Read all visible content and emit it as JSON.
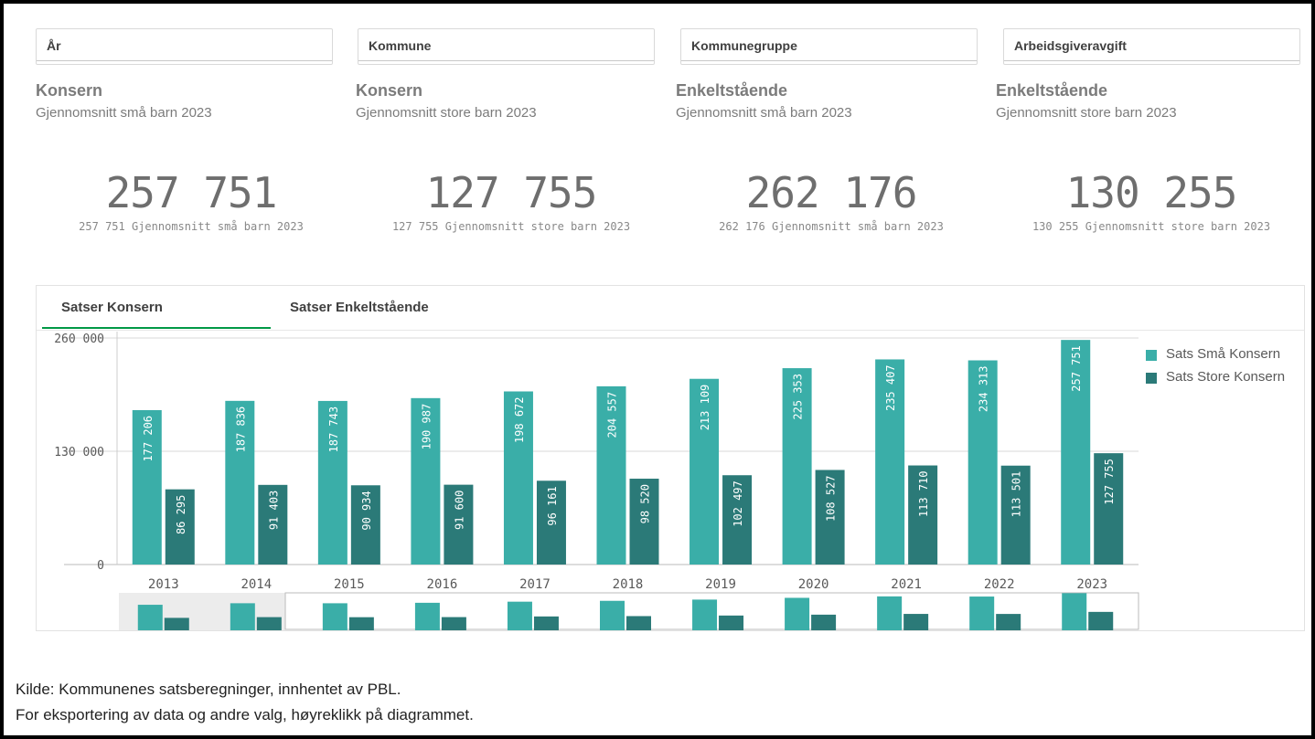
{
  "filters": [
    {
      "label": "År"
    },
    {
      "label": "Kommune"
    },
    {
      "label": "Kommunegruppe"
    },
    {
      "label": "Arbeidsgiveravgift"
    }
  ],
  "kpis": [
    {
      "title": "Konsern",
      "subtitle": "Gjennomsnitt små barn 2023",
      "value": "257 751",
      "caption": "257 751 Gjennomsnitt små barn 2023"
    },
    {
      "title": "Konsern",
      "subtitle": "Gjennomsnitt store barn 2023",
      "value": "127 755",
      "caption": "127 755 Gjennomsnitt store barn 2023"
    },
    {
      "title": "Enkeltstående",
      "subtitle": "Gjennomsnitt små barn 2023",
      "value": "262 176",
      "caption": "262 176 Gjennomsnitt små barn 2023"
    },
    {
      "title": "Enkeltstående",
      "subtitle": "Gjennomsnitt store barn 2023",
      "value": "130 255",
      "caption": "130 255 Gjennomsnitt store barn 2023"
    }
  ],
  "tabs": [
    {
      "label": "Satser Konsern",
      "active": true
    },
    {
      "label": "Satser Enkeltstående",
      "active": false
    }
  ],
  "chart_data": {
    "type": "bar",
    "categories": [
      "2013",
      "2014",
      "2015",
      "2016",
      "2017",
      "2018",
      "2019",
      "2020",
      "2021",
      "2022",
      "2023"
    ],
    "series": [
      {
        "name": "Sats Små Konsern",
        "color": "#3aaea8",
        "values": [
          177206,
          187836,
          187743,
          190987,
          198672,
          204557,
          213109,
          225353,
          235407,
          234313,
          257751
        ]
      },
      {
        "name": "Sats Store Konsern",
        "color": "#2b7a78",
        "values": [
          86295,
          91403,
          90934,
          91600,
          96161,
          98520,
          102497,
          108527,
          113710,
          113501,
          127755
        ]
      }
    ],
    "yticks": [
      "260 000",
      "130 000",
      "0"
    ],
    "ylim": [
      0,
      260000
    ],
    "grid": true,
    "legend_position": "right"
  },
  "footer": {
    "line1": "Kilde: Kommunenes satsberegninger, innhentet av PBL.",
    "line2": "For eksportering av data og andre valg, høyreklikk på diagrammet."
  }
}
